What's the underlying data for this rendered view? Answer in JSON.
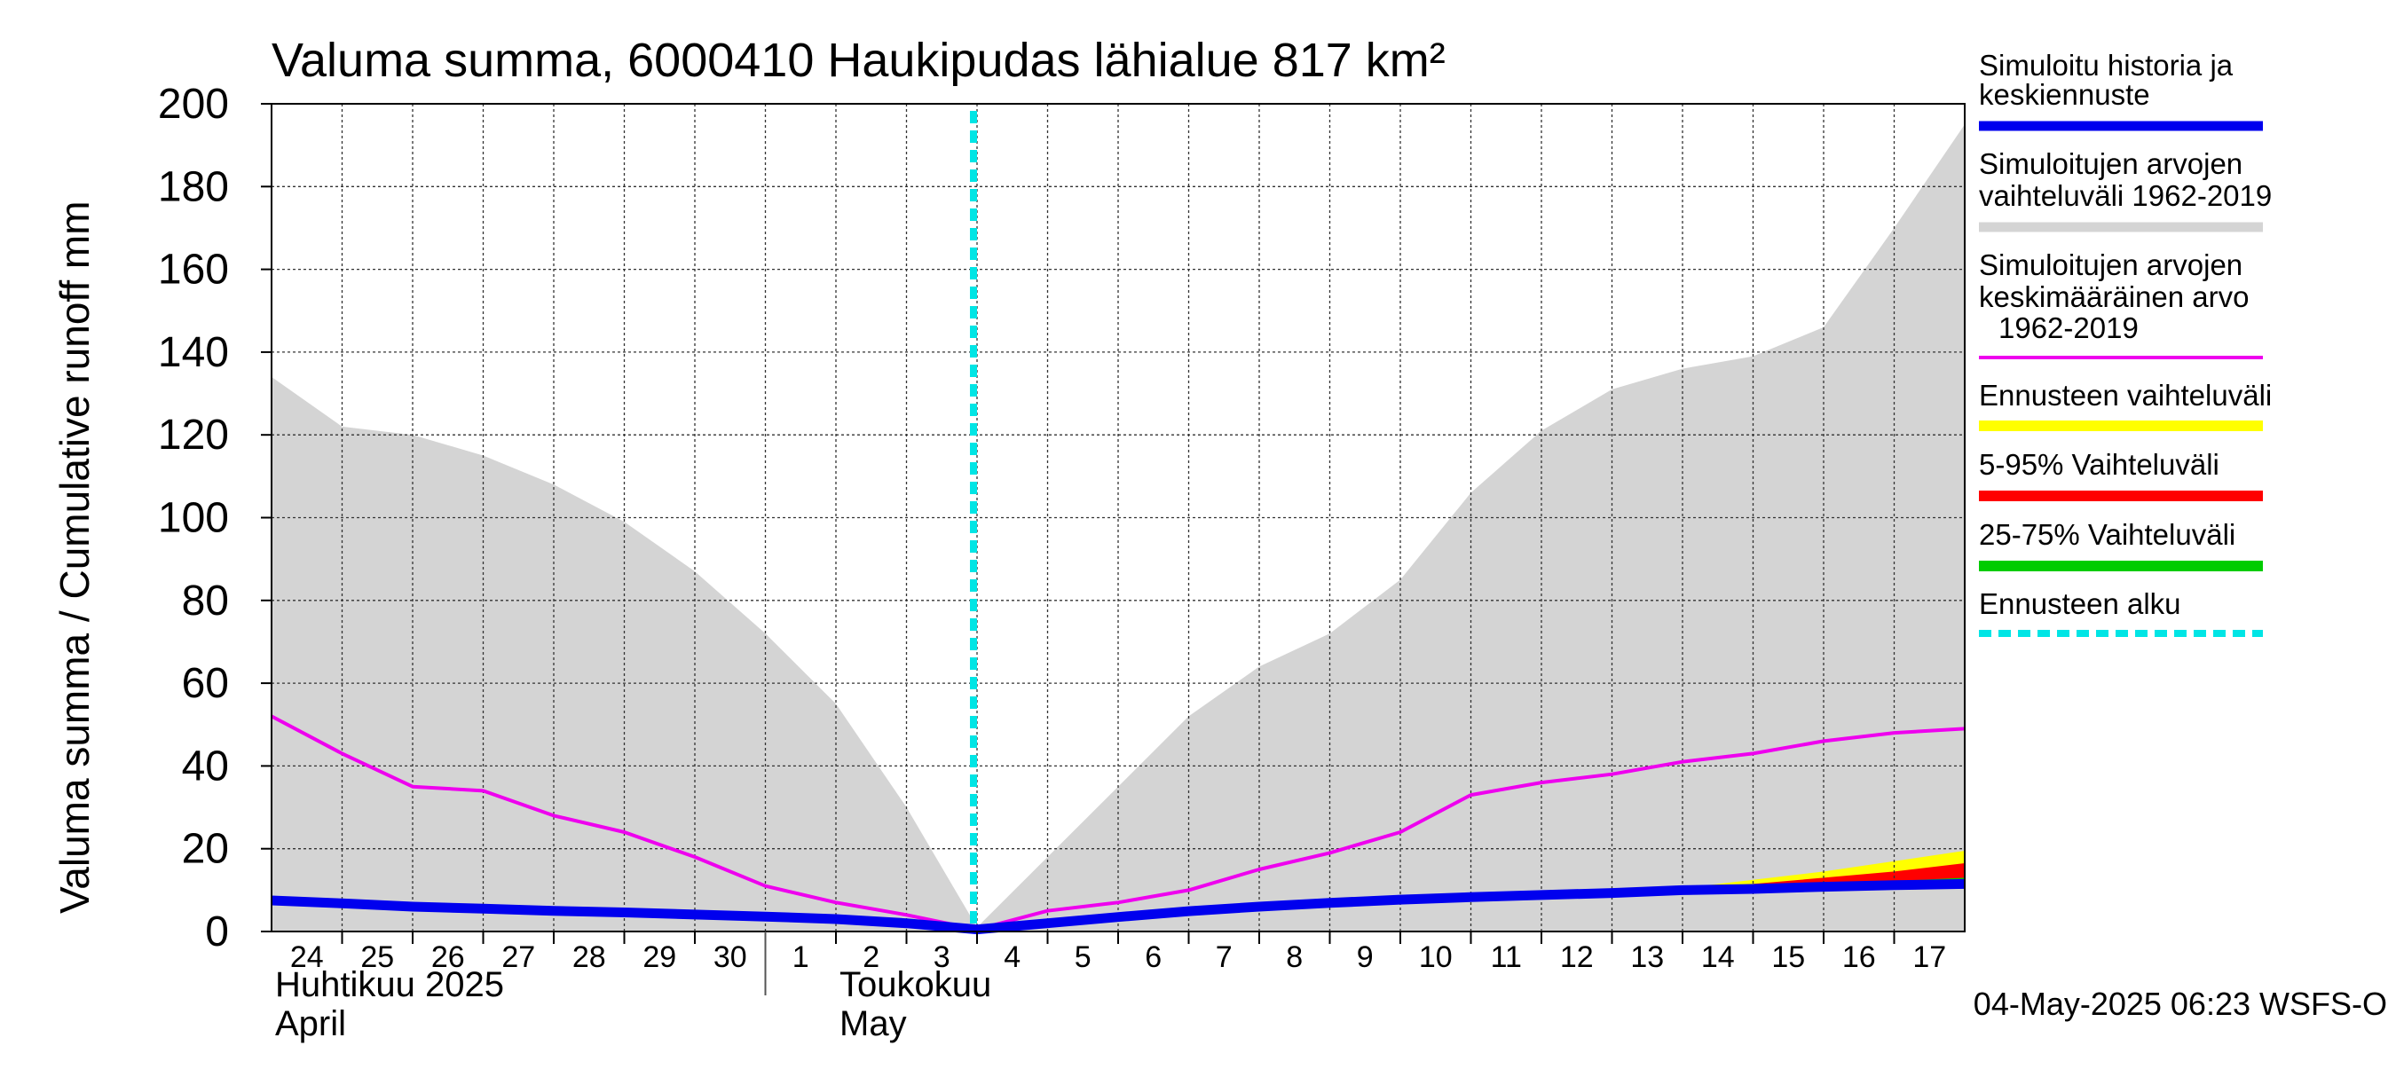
{
  "chart_data": {
    "type": "area",
    "title": "Valuma summa, 6000410 Haukipudas lähialue 817 km²",
    "ylabel": "Valuma summa / Cumulative runoff     mm",
    "ylim": [
      0,
      200
    ],
    "yticks": [
      0,
      20,
      40,
      60,
      80,
      100,
      120,
      140,
      160,
      180,
      200
    ],
    "grid": true,
    "legend_position": "right",
    "x_start": "2025-04-24",
    "x_end": "2025-05-18",
    "day_labels": [
      "24",
      "25",
      "26",
      "27",
      "28",
      "29",
      "30",
      "1",
      "2",
      "3",
      "4",
      "5",
      "6",
      "7",
      "8",
      "9",
      "10",
      "11",
      "12",
      "13",
      "14",
      "15",
      "16",
      "17"
    ],
    "month_labels": [
      {
        "line1": "Huhtikuu  2025",
        "line2": "April"
      },
      {
        "line1": "Toukokuu",
        "line2": "May"
      }
    ],
    "forecast_start": "2025-05-04",
    "timestamp": "04-May-2025 06:23 WSFS-O",
    "series": [
      {
        "name": "Simuloitujen arvojen vaihteluväli 1962-2019",
        "kind": "band",
        "color": "#d4d4d4",
        "x": [
          "2025-04-24",
          "2025-04-25",
          "2025-04-26",
          "2025-04-27",
          "2025-04-28",
          "2025-04-29",
          "2025-04-30",
          "2025-05-01",
          "2025-05-02",
          "2025-05-03",
          "2025-05-04",
          "2025-05-05",
          "2025-05-06",
          "2025-05-07",
          "2025-05-08",
          "2025-05-09",
          "2025-05-10",
          "2025-05-11",
          "2025-05-12",
          "2025-05-13",
          "2025-05-14",
          "2025-05-15",
          "2025-05-16",
          "2025-05-17",
          "2025-05-18"
        ],
        "upper": [
          134,
          122,
          120,
          115,
          108,
          99,
          87,
          72,
          55,
          30,
          1,
          18,
          35,
          52,
          64,
          72,
          85,
          106,
          121,
          131,
          136,
          139,
          146,
          170,
          195
        ],
        "lower": [
          0,
          0,
          0,
          0,
          0,
          0,
          0,
          0,
          0,
          0,
          0,
          0,
          0,
          0,
          0,
          0,
          0,
          0,
          0,
          0,
          0,
          0,
          0,
          0,
          0
        ]
      },
      {
        "name": "Simuloitujen arvojen keskimääräinen arvo 1962-2019",
        "kind": "line",
        "color": "#ee00ee",
        "x": [
          "2025-04-24",
          "2025-04-25",
          "2025-04-26",
          "2025-04-27",
          "2025-04-28",
          "2025-04-29",
          "2025-04-30",
          "2025-05-01",
          "2025-05-02",
          "2025-05-03",
          "2025-05-04",
          "2025-05-05",
          "2025-05-06",
          "2025-05-07",
          "2025-05-08",
          "2025-05-09",
          "2025-05-10",
          "2025-05-11",
          "2025-05-12",
          "2025-05-13",
          "2025-05-14",
          "2025-05-15",
          "2025-05-16",
          "2025-05-17",
          "2025-05-18"
        ],
        "values": [
          52,
          43,
          35,
          34,
          28,
          24,
          18,
          11,
          7,
          4,
          0.5,
          5,
          7,
          10,
          15,
          19,
          24,
          33,
          36,
          38,
          41,
          43,
          46,
          48,
          49
        ]
      },
      {
        "name": "Ennusteen vaihteluväli",
        "kind": "band",
        "color": "#ffff00",
        "x": [
          "2025-05-04",
          "2025-05-06",
          "2025-05-08",
          "2025-05-10",
          "2025-05-12",
          "2025-05-14",
          "2025-05-15",
          "2025-05-16",
          "2025-05-17",
          "2025-05-18"
        ],
        "upper": [
          0.5,
          3.5,
          6.2,
          7.7,
          8.8,
          10.5,
          12.5,
          14.5,
          17,
          19.5
        ],
        "lower": [
          0.5,
          3.5,
          6.2,
          7.7,
          8.8,
          10.0,
          10.3,
          10.8,
          11.2,
          11.5
        ]
      },
      {
        "name": "5-95% Vaihteluväli",
        "kind": "band",
        "color": "#ff0000",
        "x": [
          "2025-05-04",
          "2025-05-06",
          "2025-05-08",
          "2025-05-10",
          "2025-05-12",
          "2025-05-14",
          "2025-05-15",
          "2025-05-16",
          "2025-05-17",
          "2025-05-18"
        ],
        "upper": [
          0.5,
          3.5,
          6.2,
          7.7,
          8.8,
          10.3,
          11.5,
          13,
          14.5,
          16.5
        ],
        "lower": [
          0.5,
          3.5,
          6.2,
          7.7,
          8.8,
          10.0,
          10.3,
          10.8,
          11.2,
          11.5
        ]
      },
      {
        "name": "25-75% Vaihteluväli",
        "kind": "band",
        "color": "#00cc00",
        "x": [
          "2025-05-04",
          "2025-05-06",
          "2025-05-08",
          "2025-05-10",
          "2025-05-12",
          "2025-05-14",
          "2025-05-15",
          "2025-05-16",
          "2025-05-17",
          "2025-05-18"
        ],
        "upper": [
          0.5,
          3.5,
          6.2,
          7.7,
          8.8,
          10.2,
          10.8,
          11.5,
          12.2,
          13
        ],
        "lower": [
          0.5,
          3.5,
          6.2,
          7.7,
          8.8,
          10.0,
          10.3,
          10.8,
          11.2,
          11.5
        ]
      },
      {
        "name": "Simuloitu historia ja keskiennuste",
        "kind": "line",
        "color": "#0000ee",
        "x": [
          "2025-04-24",
          "2025-04-25",
          "2025-04-26",
          "2025-04-27",
          "2025-04-28",
          "2025-04-29",
          "2025-04-30",
          "2025-05-01",
          "2025-05-02",
          "2025-05-03",
          "2025-05-04",
          "2025-05-05",
          "2025-05-06",
          "2025-05-07",
          "2025-05-08",
          "2025-05-09",
          "2025-05-10",
          "2025-05-11",
          "2025-05-12",
          "2025-05-13",
          "2025-05-14",
          "2025-05-15",
          "2025-05-16",
          "2025-05-17",
          "2025-05-18"
        ],
        "values": [
          7.5,
          6.8,
          6.0,
          5.5,
          5.0,
          4.6,
          4.1,
          3.6,
          3.0,
          2.0,
          0.5,
          2.0,
          3.5,
          4.9,
          6.0,
          6.9,
          7.7,
          8.3,
          8.8,
          9.3,
          10.0,
          10.3,
          10.8,
          11.2,
          11.5
        ]
      }
    ],
    "legend": [
      {
        "label": "Simuloitu historia ja keskiennuste",
        "color": "#0000ee",
        "style": "solid"
      },
      {
        "label": "Simuloitujen arvojen vaihteluväli 1962-2019",
        "color": "#d4d4d4",
        "style": "solid"
      },
      {
        "label": "Simuloitujen arvojen keskimääräinen arvo 1962-2019",
        "color": "#ee00ee",
        "style": "solid"
      },
      {
        "label": "Ennusteen vaihteluväli",
        "color": "#ffff00",
        "style": "solid"
      },
      {
        "label": "5-95% Vaihteluväli",
        "color": "#ff0000",
        "style": "solid"
      },
      {
        "label": "25-75% Vaihteluväli",
        "color": "#00cc00",
        "style": "solid"
      },
      {
        "label": "Ennusteen alku",
        "color": "#00e5e5",
        "style": "dashed"
      }
    ]
  },
  "legend_text": {
    "item1_line1": "Simuloitu historia ja",
    "item1_line2": "keskiennuste",
    "item2_line1": "Simuloitujen arvojen",
    "item2_line2": "vaihteluväli 1962-2019",
    "item3_line1": "Simuloitujen arvojen",
    "item3_line2": "keskimääräinen arvo",
    "item3_line3": "1962-2019",
    "item4_line1": "Ennusteen vaihteluväli",
    "item5_line1": "5-95% Vaihteluväli",
    "item6_line1": "25-75% Vaihteluväli",
    "item7_line1": "Ennusteen alku"
  }
}
